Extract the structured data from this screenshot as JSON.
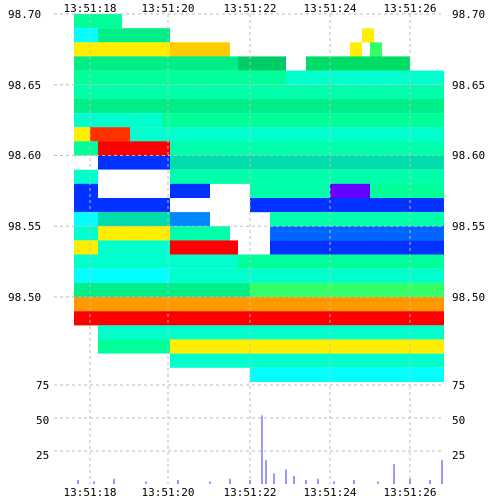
{
  "chart_data": [
    {
      "type": "heatmap",
      "title": "",
      "xlabel": "",
      "ylabel": "",
      "x_ticks": [
        "13:51:18",
        "13:51:20",
        "13:51:22",
        "13:51:24",
        "13:51:26"
      ],
      "y_ticks": [
        "98.70",
        "98.65",
        "98.60",
        "98.55",
        "98.50"
      ],
      "ylim": [
        98.44,
        98.7
      ],
      "grid": true,
      "colors": [
        "#00ffff",
        "#00ff99",
        "#33ff66",
        "#00ee88",
        "#ffee00",
        "#ff9900",
        "#ff0000",
        "#0033ff",
        "#6600ff"
      ],
      "bands": [
        {
          "price": 98.695,
          "cells": [
            [
              "13:51:17.6",
              "13:51:18.8",
              "#00ff99"
            ]
          ]
        },
        {
          "price": 98.685,
          "cells": [
            [
              "13:51:17.6",
              "13:51:18.2",
              "#00ffff"
            ],
            [
              "13:51:18.2",
              "13:51:20.0",
              "#00ee88"
            ],
            [
              "13:51:24.8",
              "13:51:25.1",
              "#ffee00"
            ]
          ]
        },
        {
          "price": 98.675,
          "cells": [
            [
              "13:51:17.6",
              "13:51:20.0",
              "#ffee00"
            ],
            [
              "13:51:20.0",
              "13:51:21.5",
              "#ffcc00"
            ],
            [
              "13:51:24.5",
              "13:51:24.8",
              "#ffee00"
            ],
            [
              "13:51:25.0",
              "13:51:25.3",
              "#33ff66"
            ]
          ]
        },
        {
          "price": 98.665,
          "cells": [
            [
              "13:51:17.6",
              "13:51:21.7",
              "#00ee88"
            ],
            [
              "13:51:21.7",
              "13:51:22.9",
              "#00cc66"
            ],
            [
              "13:51:23.4",
              "13:51:26.0",
              "#00dd66"
            ]
          ]
        },
        {
          "price": 98.655,
          "cells": [
            [
              "13:51:17.6",
              "13:51:22.9",
              "#00ff99"
            ],
            [
              "13:51:22.9",
              "13:51:26.9",
              "#00ffcc"
            ]
          ]
        },
        {
          "price": 98.645,
          "cells": [
            [
              "13:51:17.6",
              "13:51:26.9",
              "#00ffaa"
            ]
          ]
        },
        {
          "price": 98.635,
          "cells": [
            [
              "13:51:17.6",
              "13:51:26.9",
              "#00ee88"
            ]
          ]
        },
        {
          "price": 98.625,
          "cells": [
            [
              "13:51:17.6",
              "13:51:19.8",
              "#00ffcc"
            ],
            [
              "13:51:19.8",
              "13:51:26.9",
              "#00ff99"
            ]
          ]
        },
        {
          "price": 98.615,
          "cells": [
            [
              "13:51:17.6",
              "13:51:18.0",
              "#ffee00"
            ],
            [
              "13:51:18.0",
              "13:51:19.0",
              "#ff3300"
            ],
            [
              "13:51:19.0",
              "13:51:26.9",
              "#00ffcc"
            ]
          ]
        },
        {
          "price": 98.605,
          "cells": [
            [
              "13:51:17.6",
              "13:51:18.2",
              "#00ff99"
            ],
            [
              "13:51:18.2",
              "13:51:20.0",
              "#ff0000"
            ],
            [
              "13:51:20.0",
              "13:51:26.9",
              "#00ffaa"
            ]
          ]
        },
        {
          "price": 98.595,
          "cells": [
            [
              "13:51:18.2",
              "13:51:20.0",
              "#0033ff"
            ],
            [
              "13:51:20.0",
              "13:51:26.9",
              "#00ddaa"
            ]
          ]
        },
        {
          "price": 98.585,
          "cells": [
            [
              "13:51:17.6",
              "13:51:18.2",
              "#00ffcc"
            ],
            [
              "13:51:18.2",
              "13:51:20.0",
              "#ffffff"
            ],
            [
              "13:51:20.0",
              "13:51:26.9",
              "#00ffaa"
            ]
          ]
        },
        {
          "price": 98.575,
          "cells": [
            [
              "13:51:17.6",
              "13:51:18.2",
              "#0033ff"
            ],
            [
              "13:51:20.0",
              "13:51:21.0",
              "#0033ff"
            ],
            [
              "13:51:22.0",
              "13:51:24.0",
              "#00ffaa"
            ],
            [
              "13:51:24.0",
              "13:51:25.0",
              "#6600ff"
            ],
            [
              "13:51:25.0",
              "13:51:26.9",
              "#00ff99"
            ]
          ]
        },
        {
          "price": 98.565,
          "cells": [
            [
              "13:51:17.6",
              "13:51:18.4",
              "#0033ff"
            ],
            [
              "13:51:18.4",
              "13:51:20.0",
              "#0033ff"
            ],
            [
              "13:51:22.0",
              "13:51:26.9",
              "#0033ff"
            ]
          ]
        },
        {
          "price": 98.555,
          "cells": [
            [
              "13:51:17.6",
              "13:51:18.2",
              "#00ffff"
            ],
            [
              "13:51:18.2",
              "13:51:20.0",
              "#00ddaa"
            ],
            [
              "13:51:20.0",
              "13:51:21.0",
              "#0088ff"
            ],
            [
              "13:51:22.5",
              "13:51:26.9",
              "#00ffaa"
            ]
          ]
        },
        {
          "price": 98.545,
          "cells": [
            [
              "13:51:17.6",
              "13:51:18.2",
              "#00ffcc"
            ],
            [
              "13:51:18.2",
              "13:51:20.0",
              "#ffee00"
            ],
            [
              "13:51:20.0",
              "13:51:21.5",
              "#00ffaa"
            ],
            [
              "13:51:22.5",
              "13:51:26.9",
              "#0066ff"
            ]
          ]
        },
        {
          "price": 98.535,
          "cells": [
            [
              "13:51:17.6",
              "13:51:18.2",
              "#ffee00"
            ],
            [
              "13:51:18.2",
              "13:51:20.0",
              "#00ffcc"
            ],
            [
              "13:51:20.0",
              "13:51:21.7",
              "#ff0000"
            ],
            [
              "13:51:22.5",
              "13:51:26.9",
              "#0033ff"
            ]
          ]
        },
        {
          "price": 98.525,
          "cells": [
            [
              "13:51:17.6",
              "13:51:21.7",
              "#00ffcc"
            ],
            [
              "13:51:21.7",
              "13:51:26.9",
              "#00ff99"
            ]
          ]
        },
        {
          "price": 98.515,
          "cells": [
            [
              "13:51:17.6",
              "13:51:20.0",
              "#00ffff"
            ],
            [
              "13:51:20.0",
              "13:51:26.9",
              "#00ffcc"
            ]
          ]
        },
        {
          "price": 98.505,
          "cells": [
            [
              "13:51:17.6",
              "13:51:22.0",
              "#00ee88"
            ],
            [
              "13:51:22.0",
              "13:51:26.9",
              "#33ff66"
            ]
          ]
        },
        {
          "price": 98.495,
          "cells": [
            [
              "13:51:17.6",
              "13:51:26.9",
              "#ff9900"
            ]
          ]
        },
        {
          "price": 98.485,
          "cells": [
            [
              "13:51:17.6",
              "13:51:26.9",
              "#ff0000"
            ]
          ]
        },
        {
          "price": 98.475,
          "cells": [
            [
              "13:51:18.2",
              "13:51:26.9",
              "#00ffcc"
            ]
          ]
        },
        {
          "price": 98.465,
          "cells": [
            [
              "13:51:18.2",
              "13:51:20.0",
              "#00ff99"
            ],
            [
              "13:51:20.0",
              "13:51:26.9",
              "#ffee00"
            ]
          ]
        },
        {
          "price": 98.455,
          "cells": [
            [
              "13:51:20.0",
              "13:51:26.9",
              "#00ffcc"
            ]
          ]
        },
        {
          "price": 98.445,
          "cells": [
            [
              "13:51:22.0",
              "13:51:26.9",
              "#00ffff"
            ]
          ]
        }
      ]
    },
    {
      "type": "bar",
      "title": "",
      "xlabel": "",
      "ylabel": "",
      "x_ticks": [
        "13:51:18",
        "13:51:20",
        "13:51:22",
        "13:51:24",
        "13:51:26"
      ],
      "y_ticks": [
        "75",
        "50",
        "25"
      ],
      "ylim": [
        0,
        75
      ],
      "bar_color": "#9999ff",
      "bars": [
        {
          "t": "13:51:17.7",
          "v": 3
        },
        {
          "t": "13:51:18.1",
          "v": 2
        },
        {
          "t": "13:51:18.6",
          "v": 4
        },
        {
          "t": "13:51:19.4",
          "v": 2
        },
        {
          "t": "13:51:20.2",
          "v": 3
        },
        {
          "t": "13:51:21.0",
          "v": 2
        },
        {
          "t": "13:51:21.5",
          "v": 4
        },
        {
          "t": "13:51:22.0",
          "v": 3
        },
        {
          "t": "13:51:22.3",
          "v": 52
        },
        {
          "t": "13:51:22.4",
          "v": 18
        },
        {
          "t": "13:51:22.6",
          "v": 8
        },
        {
          "t": "13:51:22.9",
          "v": 11
        },
        {
          "t": "13:51:23.1",
          "v": 6
        },
        {
          "t": "13:51:23.4",
          "v": 3
        },
        {
          "t": "13:51:23.7",
          "v": 4
        },
        {
          "t": "13:51:24.1",
          "v": 2
        },
        {
          "t": "13:51:24.6",
          "v": 3
        },
        {
          "t": "13:51:25.2",
          "v": 2
        },
        {
          "t": "13:51:25.6",
          "v": 15
        },
        {
          "t": "13:51:26.0",
          "v": 4
        },
        {
          "t": "13:51:26.5",
          "v": 3
        },
        {
          "t": "13:51:26.8",
          "v": 18
        }
      ]
    }
  ]
}
